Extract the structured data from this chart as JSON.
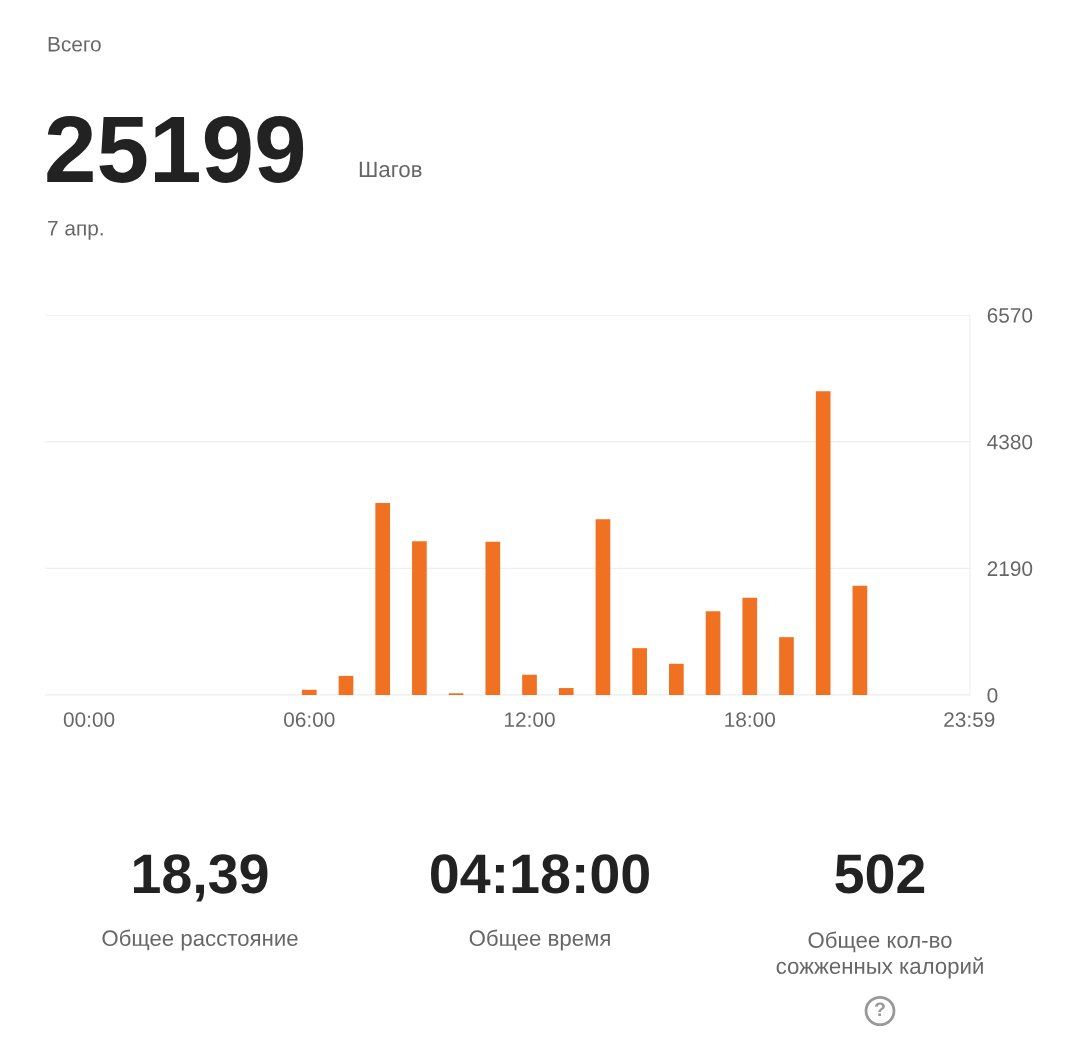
{
  "chart_data": {
    "type": "bar",
    "title": "Всего",
    "subtitle": "7 апр.",
    "annotations": [
      "25199",
      "Шагов",
      "18,39",
      "Общее расстояние",
      "04:18:00",
      "Общее время",
      "502",
      "Общее кол-во\nсожженных калорий",
      "?"
    ],
    "x": [
      6,
      7,
      8,
      9,
      10,
      11,
      12,
      13,
      14,
      15,
      16,
      17,
      18,
      19,
      20,
      21
    ],
    "values": [
      90,
      330,
      3320,
      2660,
      30,
      2650,
      350,
      120,
      3040,
      810,
      540,
      1450,
      1680,
      1000,
      5250,
      1890
    ],
    "color": "#f07122",
    "xlim": [
      -1.2,
      24
    ],
    "xticks": [
      {
        "value": 0,
        "label": "00:00"
      },
      {
        "value": 6,
        "label": "06:00"
      },
      {
        "value": 12,
        "label": "12:00"
      },
      {
        "value": 18,
        "label": "18:00"
      },
      {
        "value": 23.98,
        "label": "23:59"
      }
    ],
    "ylim": [
      0,
      6570
    ],
    "yticks": [
      0,
      2190,
      4380,
      6570
    ],
    "grid": "y"
  }
}
